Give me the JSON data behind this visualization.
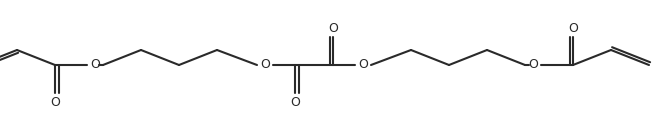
{
  "bg_color": "#ffffff",
  "line_color": "#2a2a2a",
  "line_width": 1.5,
  "fig_width": 6.66,
  "fig_height": 1.18,
  "dpi": 100,
  "xlim": [
    0,
    666
  ],
  "ylim": [
    0,
    118
  ]
}
